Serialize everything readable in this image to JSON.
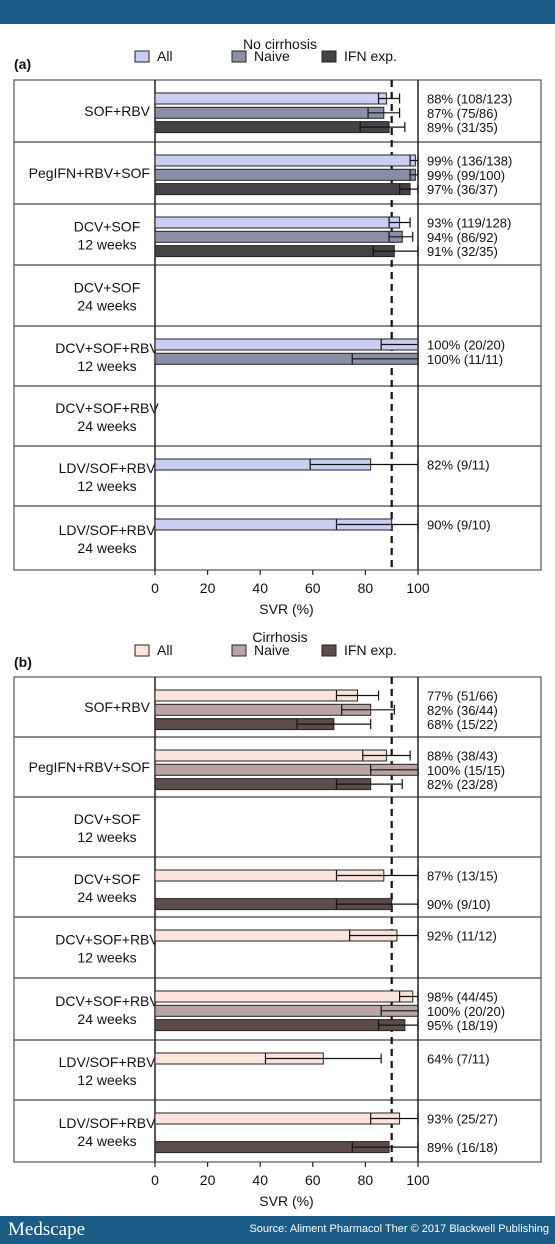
{
  "header": {
    "bar": ""
  },
  "footer": {
    "logo": "Medscape",
    "source": "Source: Aliment Pharmacol Ther © 2017 Blackwell Publishing"
  },
  "colors": {
    "a": {
      "all": "#c9cef2",
      "naive": "#8a8fa6",
      "ifn": "#434348"
    },
    "b": {
      "all": "#fce3dc",
      "naive": "#b9a3a3",
      "ifn": "#5e4b4b"
    },
    "brand": "#1a5c86"
  },
  "chart_data": [
    {
      "panel": "(a)",
      "title": "No cirrhosis",
      "type": "bar",
      "orientation": "horizontal",
      "xlabel": "SVR (%)",
      "xlim": [
        0,
        100
      ],
      "xticks": [
        "0",
        "20",
        "40",
        "60",
        "80",
        "100"
      ],
      "reference_line": 90,
      "legend": [
        "All",
        "Naive",
        "IFN exp."
      ],
      "groups": [
        {
          "label": [
            "SOF+RBV"
          ],
          "bars": [
            {
              "series": "All",
              "value": 88,
              "err": [
                85,
                93
              ],
              "text": "88% (108/123)"
            },
            {
              "series": "Naive",
              "value": 87,
              "err": [
                81,
                93
              ],
              "text": "87% (75/86)"
            },
            {
              "series": "IFN exp.",
              "value": 89,
              "err": [
                78,
                95
              ],
              "text": "89% (31/35)"
            }
          ]
        },
        {
          "label": [
            "PegIFN+RBV+SOF"
          ],
          "bars": [
            {
              "series": "All",
              "value": 99,
              "err": [
                97,
                100
              ],
              "text": "99% (136/138)"
            },
            {
              "series": "Naive",
              "value": 99,
              "err": [
                97,
                100
              ],
              "text": "99% (99/100)"
            },
            {
              "series": "IFN exp.",
              "value": 97,
              "err": [
                93,
                100
              ],
              "text": "97% (36/37)"
            }
          ]
        },
        {
          "label": [
            "DCV+SOF",
            "12 weeks"
          ],
          "bars": [
            {
              "series": "All",
              "value": 93,
              "err": [
                89,
                97
              ],
              "text": "93% (119/128)"
            },
            {
              "series": "Naive",
              "value": 94,
              "err": [
                89,
                98
              ],
              "text": "94% (86/92)"
            },
            {
              "series": "IFN exp.",
              "value": 91,
              "err": [
                83,
                100
              ],
              "text": "91% (32/35)"
            }
          ]
        },
        {
          "label": [
            "DCV+SOF",
            "24 weeks"
          ],
          "bars": []
        },
        {
          "label": [
            "DCV+SOF+RBV",
            "12 weeks"
          ],
          "bars": [
            {
              "series": "All",
              "value": 100,
              "err": [
                86,
                100
              ],
              "text": "100% (20/20)"
            },
            {
              "series": "Naive",
              "value": 100,
              "err": [
                75,
                100
              ],
              "text": "100% (11/11)"
            }
          ]
        },
        {
          "label": [
            "DCV+SOF+RBV",
            "24 weeks"
          ],
          "bars": []
        },
        {
          "label": [
            "LDV/SOF+RBV",
            "12 weeks"
          ],
          "bars": [
            {
              "series": "All",
              "value": 82,
              "err": [
                59,
                100
              ],
              "text": "82% (9/11)"
            }
          ]
        },
        {
          "label": [
            "LDV/SOF+RBV",
            "24 weeks"
          ],
          "bars": [
            {
              "series": "All",
              "value": 90,
              "err": [
                69,
                100
              ],
              "text": "90% (9/10)"
            }
          ]
        }
      ]
    },
    {
      "panel": "(b)",
      "title": "Cirrhosis",
      "type": "bar",
      "orientation": "horizontal",
      "xlabel": "SVR (%)",
      "xlim": [
        0,
        100
      ],
      "xticks": [
        "0",
        "20",
        "40",
        "60",
        "80",
        "100"
      ],
      "reference_line": 90,
      "legend": [
        "All",
        "Naive",
        "IFN exp."
      ],
      "groups": [
        {
          "label": [
            "SOF+RBV"
          ],
          "bars": [
            {
              "series": "All",
              "value": 77,
              "err": [
                69,
                85
              ],
              "text": "77% (51/66)"
            },
            {
              "series": "Naive",
              "value": 82,
              "err": [
                71,
                91
              ],
              "text": "82% (36/44)"
            },
            {
              "series": "IFN exp.",
              "value": 68,
              "err": [
                54,
                82
              ],
              "text": "68% (15/22)"
            }
          ]
        },
        {
          "label": [
            "PegIFN+RBV+SOF"
          ],
          "bars": [
            {
              "series": "All",
              "value": 88,
              "err": [
                79,
                97
              ],
              "text": "88% (38/43)"
            },
            {
              "series": "Naive",
              "value": 100,
              "err": [
                82,
                100
              ],
              "text": "100% (15/15)"
            },
            {
              "series": "IFN exp.",
              "value": 82,
              "err": [
                69,
                94
              ],
              "text": "82% (23/28)"
            }
          ]
        },
        {
          "label": [
            "DCV+SOF",
            "12 weeks"
          ],
          "bars": []
        },
        {
          "label": [
            "DCV+SOF",
            "24 weeks"
          ],
          "bars": [
            {
              "series": "All",
              "value": 87,
              "err": [
                69,
                100
              ],
              "text": "87% (13/15)",
              "slot": 0
            },
            {
              "series": "IFN exp.",
              "value": 90,
              "err": [
                69,
                100
              ],
              "text": "90% (9/10)",
              "slot": 2
            }
          ]
        },
        {
          "label": [
            "DCV+SOF+RBV",
            "12 weeks"
          ],
          "bars": [
            {
              "series": "All",
              "value": 92,
              "err": [
                74,
                100
              ],
              "text": "92% (11/12)"
            }
          ]
        },
        {
          "label": [
            "DCV+SOF+RBV",
            "24 weeks"
          ],
          "bars": [
            {
              "series": "All",
              "value": 98,
              "err": [
                93,
                100
              ],
              "text": "98% (44/45)"
            },
            {
              "series": "Naive",
              "value": 100,
              "err": [
                86,
                100
              ],
              "text": "100% (20/20)"
            },
            {
              "series": "IFN exp.",
              "value": 95,
              "err": [
                85,
                100
              ],
              "text": "95% (18/19)"
            }
          ]
        },
        {
          "label": [
            "LDV/SOF+RBV",
            "12 weeks"
          ],
          "bars": [
            {
              "series": "All",
              "value": 64,
              "err": [
                42,
                86
              ],
              "text": "64% (7/11)"
            }
          ]
        },
        {
          "label": [
            "LDV/SOF+RBV",
            "24 weeks"
          ],
          "bars": [
            {
              "series": "All",
              "value": 93,
              "err": [
                82,
                100
              ],
              "text": "93% (25/27)",
              "slot": 0
            },
            {
              "series": "IFN exp.",
              "value": 89,
              "err": [
                75,
                100
              ],
              "text": "89% (16/18)",
              "slot": 2
            }
          ]
        }
      ]
    }
  ]
}
